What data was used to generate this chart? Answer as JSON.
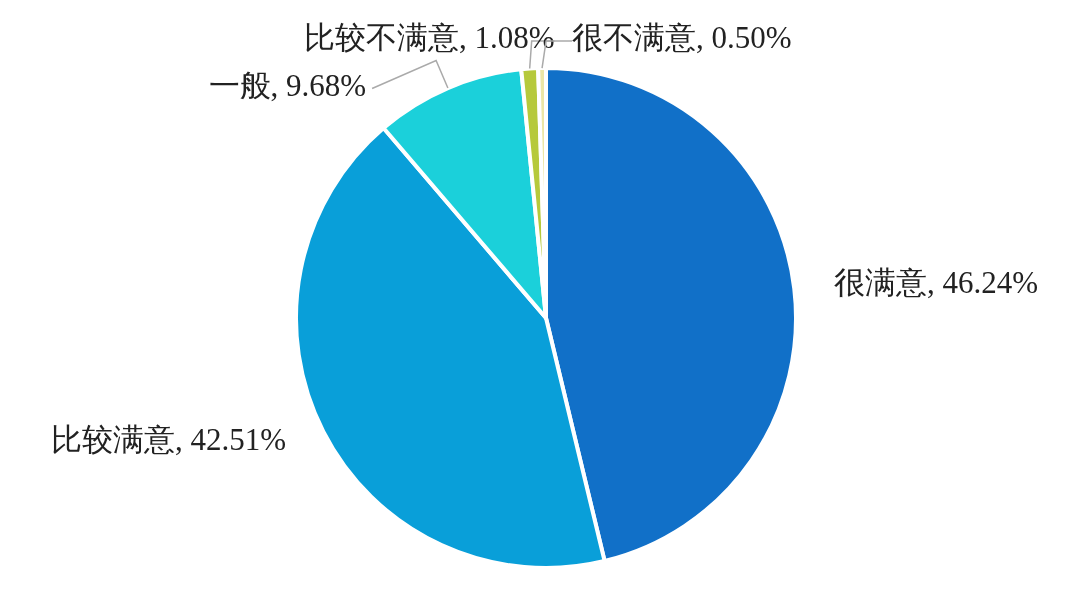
{
  "chart_data": {
    "type": "pie",
    "categories": [
      "很满意",
      "比较满意",
      "一般",
      "比较不满意",
      "很不满意"
    ],
    "values": [
      46.24,
      42.51,
      9.68,
      1.08,
      0.5
    ],
    "value_labels": [
      "46.24%",
      "42.51%",
      "9.68%",
      "1.08%",
      "0.50%"
    ],
    "colors": [
      "#1170c8",
      "#099fd9",
      "#1bd0da",
      "#b6c93b",
      "#ece6a6"
    ]
  }
}
